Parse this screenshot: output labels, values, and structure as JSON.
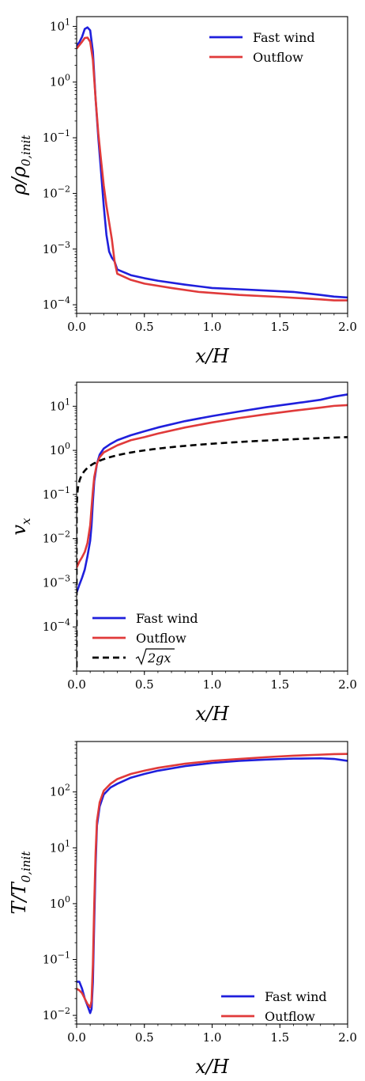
{
  "chart_data": [
    {
      "type": "line",
      "xlabel": "x/H",
      "ylabel": "ρ/ρ0,init",
      "yscale": "log",
      "xlim": [
        0,
        2
      ],
      "ylim": [
        7e-05,
        15
      ],
      "xticks": [
        "0.0",
        "0.5",
        "1.0",
        "1.5",
        "2.0"
      ],
      "yticks": [
        "10^1",
        "10^0",
        "10^-1",
        "10^-2",
        "10^-3",
        "10^-4"
      ],
      "legend_position": "top-right",
      "series": [
        {
          "name": "Fast wind",
          "color": "#1f1fdc",
          "style": "solid",
          "points": [
            [
              0.0,
              4.5
            ],
            [
              0.02,
              5.2
            ],
            [
              0.04,
              6.5
            ],
            [
              0.06,
              9.0
            ],
            [
              0.08,
              9.6
            ],
            [
              0.1,
              8.5
            ],
            [
              0.12,
              3.5
            ],
            [
              0.14,
              0.5
            ],
            [
              0.16,
              0.1
            ],
            [
              0.18,
              0.025
            ],
            [
              0.2,
              0.006
            ],
            [
              0.22,
              0.0018
            ],
            [
              0.24,
              0.0009
            ],
            [
              0.26,
              0.0007
            ],
            [
              0.28,
              0.0006
            ],
            [
              0.3,
              0.00043
            ],
            [
              0.4,
              0.00034
            ],
            [
              0.5,
              0.0003
            ],
            [
              0.6,
              0.00027
            ],
            [
              0.8,
              0.00023
            ],
            [
              1.0,
              0.0002
            ],
            [
              1.2,
              0.00019
            ],
            [
              1.4,
              0.00018
            ],
            [
              1.6,
              0.00017
            ],
            [
              1.8,
              0.00015
            ],
            [
              1.9,
              0.00014
            ],
            [
              2.0,
              0.000135
            ]
          ]
        },
        {
          "name": "Outflow",
          "color": "#e03a3a",
          "style": "solid",
          "points": [
            [
              0.0,
              4.0
            ],
            [
              0.02,
              4.6
            ],
            [
              0.04,
              5.3
            ],
            [
              0.06,
              6.2
            ],
            [
              0.08,
              6.3
            ],
            [
              0.1,
              5.3
            ],
            [
              0.12,
              2.5
            ],
            [
              0.14,
              0.5
            ],
            [
              0.16,
              0.12
            ],
            [
              0.18,
              0.04
            ],
            [
              0.2,
              0.014
            ],
            [
              0.22,
              0.006
            ],
            [
              0.24,
              0.003
            ],
            [
              0.26,
              0.0015
            ],
            [
              0.28,
              0.0006
            ],
            [
              0.3,
              0.00036
            ],
            [
              0.4,
              0.00028
            ],
            [
              0.5,
              0.00024
            ],
            [
              0.7,
              0.0002
            ],
            [
              0.9,
              0.00017
            ],
            [
              1.2,
              0.00015
            ],
            [
              1.5,
              0.000138
            ],
            [
              1.8,
              0.000125
            ],
            [
              1.9,
              0.00012
            ],
            [
              2.0,
              0.00012
            ]
          ]
        }
      ]
    },
    {
      "type": "line",
      "xlabel": "x/H",
      "ylabel": "vx",
      "yscale": "log",
      "xlim": [
        0,
        2
      ],
      "ylim": [
        1e-05,
        35
      ],
      "xticks": [
        "0.0",
        "0.5",
        "1.0",
        "1.5",
        "2.0"
      ],
      "yticks": [
        "10^1",
        "10^0",
        "10^-1",
        "10^-2",
        "10^-3",
        "10^-4"
      ],
      "legend_position": "lower-left",
      "series": [
        {
          "name": "Fast wind",
          "color": "#1f1fdc",
          "style": "solid",
          "points": [
            [
              0.0,
              0.0006
            ],
            [
              0.02,
              0.0009
            ],
            [
              0.04,
              0.0013
            ],
            [
              0.06,
              0.002
            ],
            [
              0.08,
              0.004
            ],
            [
              0.1,
              0.009
            ],
            [
              0.11,
              0.02
            ],
            [
              0.12,
              0.07
            ],
            [
              0.13,
              0.2
            ],
            [
              0.15,
              0.5
            ],
            [
              0.17,
              0.8
            ],
            [
              0.2,
              1.1
            ],
            [
              0.25,
              1.4
            ],
            [
              0.3,
              1.7
            ],
            [
              0.4,
              2.2
            ],
            [
              0.5,
              2.7
            ],
            [
              0.6,
              3.3
            ],
            [
              0.8,
              4.6
            ],
            [
              1.0,
              6.0
            ],
            [
              1.2,
              7.6
            ],
            [
              1.4,
              9.5
            ],
            [
              1.6,
              11.5
            ],
            [
              1.8,
              14.0
            ],
            [
              1.9,
              16.5
            ],
            [
              2.0,
              18.5
            ]
          ]
        },
        {
          "name": "Outflow",
          "color": "#e03a3a",
          "style": "solid",
          "points": [
            [
              0.0,
              0.0022
            ],
            [
              0.02,
              0.003
            ],
            [
              0.04,
              0.0038
            ],
            [
              0.06,
              0.005
            ],
            [
              0.08,
              0.008
            ],
            [
              0.1,
              0.02
            ],
            [
              0.11,
              0.05
            ],
            [
              0.12,
              0.12
            ],
            [
              0.13,
              0.25
            ],
            [
              0.15,
              0.5
            ],
            [
              0.17,
              0.7
            ],
            [
              0.2,
              0.9
            ],
            [
              0.3,
              1.3
            ],
            [
              0.4,
              1.7
            ],
            [
              0.5,
              2.0
            ],
            [
              0.6,
              2.4
            ],
            [
              0.8,
              3.3
            ],
            [
              1.0,
              4.3
            ],
            [
              1.2,
              5.4
            ],
            [
              1.4,
              6.6
            ],
            [
              1.6,
              7.9
            ],
            [
              1.8,
              9.3
            ],
            [
              1.9,
              10.2
            ],
            [
              2.0,
              10.6
            ]
          ]
        },
        {
          "name": "√(2gx)",
          "color": "#000000",
          "style": "dashed",
          "formula": "sqrt(2*x)"
        }
      ]
    },
    {
      "type": "line",
      "xlabel": "x/H",
      "ylabel": "T/T0,init",
      "yscale": "log",
      "xlim": [
        0,
        2
      ],
      "ylim": [
        0.007,
        800
      ],
      "xticks": [
        "0.0",
        "0.5",
        "1.0",
        "1.5",
        "2.0"
      ],
      "yticks": [
        "10^2",
        "10^1",
        "10^0",
        "10^-1",
        "10^-2"
      ],
      "legend_position": "lower-right",
      "series": [
        {
          "name": "Fast wind",
          "color": "#1f1fdc",
          "style": "solid",
          "points": [
            [
              0.0,
              0.04
            ],
            [
              0.02,
              0.04
            ],
            [
              0.04,
              0.03
            ],
            [
              0.06,
              0.02
            ],
            [
              0.08,
              0.015
            ],
            [
              0.1,
              0.011
            ],
            [
              0.11,
              0.013
            ],
            [
              0.12,
              0.04
            ],
            [
              0.13,
              0.5
            ],
            [
              0.14,
              5.0
            ],
            [
              0.15,
              25
            ],
            [
              0.17,
              55
            ],
            [
              0.2,
              90
            ],
            [
              0.25,
              120
            ],
            [
              0.3,
              140
            ],
            [
              0.4,
              180
            ],
            [
              0.5,
              210
            ],
            [
              0.6,
              240
            ],
            [
              0.8,
              290
            ],
            [
              1.0,
              330
            ],
            [
              1.2,
              360
            ],
            [
              1.4,
              380
            ],
            [
              1.6,
              395
            ],
            [
              1.8,
              400
            ],
            [
              1.9,
              390
            ],
            [
              2.0,
              360
            ]
          ]
        },
        {
          "name": "Outflow",
          "color": "#e03a3a",
          "style": "solid",
          "points": [
            [
              0.0,
              0.03
            ],
            [
              0.02,
              0.028
            ],
            [
              0.04,
              0.025
            ],
            [
              0.06,
              0.02
            ],
            [
              0.08,
              0.016
            ],
            [
              0.1,
              0.014
            ],
            [
              0.11,
              0.018
            ],
            [
              0.12,
              0.08
            ],
            [
              0.13,
              1.0
            ],
            [
              0.14,
              8.0
            ],
            [
              0.15,
              30
            ],
            [
              0.17,
              65
            ],
            [
              0.2,
              105
            ],
            [
              0.25,
              140
            ],
            [
              0.3,
              170
            ],
            [
              0.4,
              210
            ],
            [
              0.5,
              240
            ],
            [
              0.6,
              270
            ],
            [
              0.8,
              320
            ],
            [
              1.0,
              360
            ],
            [
              1.2,
              390
            ],
            [
              1.4,
              420
            ],
            [
              1.6,
              445
            ],
            [
              1.8,
              465
            ],
            [
              1.9,
              475
            ],
            [
              2.0,
              480
            ]
          ]
        }
      ]
    }
  ]
}
